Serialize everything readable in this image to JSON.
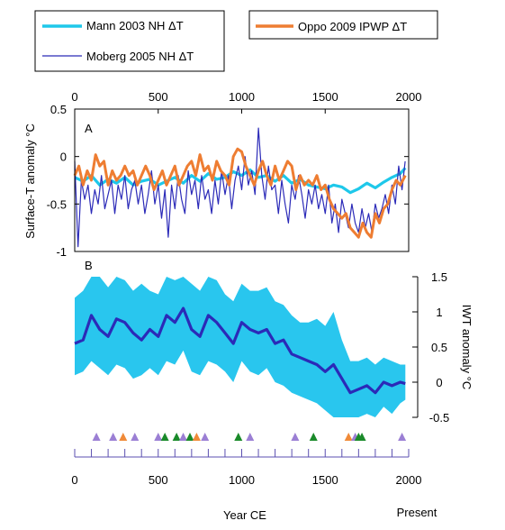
{
  "chart_data": [
    {
      "panel": "A",
      "type": "line",
      "ylabel": "Surface-T anomaly °C",
      "xlim": [
        0,
        2000
      ],
      "ylim": [
        -1,
        0.5
      ],
      "x_ticks": [
        "0",
        "500",
        "1000",
        "1500",
        "2000"
      ],
      "y_ticks": [
        "0.5",
        "0",
        "-0.5",
        "-1"
      ],
      "y_tick_values": [
        0.5,
        0,
        -0.5,
        -1
      ],
      "x_tick_values": [
        0,
        500,
        1000,
        1500,
        2000
      ],
      "series": [
        {
          "name": "Mann 2003 NH ΔT",
          "color": "#1ec8ea",
          "x": [
            0,
            50,
            100,
            150,
            200,
            250,
            300,
            350,
            400,
            450,
            500,
            550,
            600,
            650,
            700,
            750,
            800,
            850,
            900,
            950,
            1000,
            1050,
            1100,
            1150,
            1200,
            1250,
            1300,
            1350,
            1400,
            1450,
            1500,
            1550,
            1600,
            1650,
            1700,
            1750,
            1800,
            1850,
            1900,
            1950,
            1980
          ],
          "y": [
            -0.22,
            -0.26,
            -0.2,
            -0.3,
            -0.24,
            -0.28,
            -0.22,
            -0.3,
            -0.26,
            -0.24,
            -0.3,
            -0.26,
            -0.22,
            -0.28,
            -0.2,
            -0.26,
            -0.18,
            -0.24,
            -0.22,
            -0.16,
            -0.2,
            -0.14,
            -0.22,
            -0.2,
            -0.26,
            -0.2,
            -0.28,
            -0.24,
            -0.3,
            -0.32,
            -0.34,
            -0.3,
            -0.32,
            -0.38,
            -0.34,
            -0.28,
            -0.33,
            -0.27,
            -0.22,
            -0.18,
            -0.12
          ]
        },
        {
          "name": "Moberg 2005 NH ΔT",
          "color": "#2b2ab8",
          "x": [
            0,
            20,
            40,
            60,
            80,
            100,
            120,
            140,
            160,
            180,
            200,
            220,
            240,
            260,
            280,
            300,
            320,
            340,
            360,
            380,
            400,
            420,
            440,
            460,
            480,
            500,
            520,
            540,
            560,
            580,
            600,
            620,
            640,
            660,
            680,
            700,
            720,
            740,
            760,
            780,
            800,
            820,
            840,
            860,
            880,
            900,
            920,
            940,
            960,
            980,
            1000,
            1020,
            1040,
            1060,
            1080,
            1100,
            1120,
            1140,
            1160,
            1180,
            1200,
            1220,
            1240,
            1260,
            1280,
            1300,
            1320,
            1340,
            1360,
            1380,
            1400,
            1420,
            1440,
            1460,
            1480,
            1500,
            1520,
            1540,
            1560,
            1580,
            1600,
            1620,
            1640,
            1660,
            1680,
            1700,
            1720,
            1740,
            1760,
            1780,
            1800,
            1820,
            1840,
            1860,
            1880,
            1900,
            1920,
            1940,
            1960,
            1979
          ],
          "y": [
            -0.05,
            -0.95,
            -0.25,
            -0.45,
            -0.3,
            -0.6,
            -0.35,
            -0.5,
            -0.2,
            -0.55,
            -0.4,
            -0.25,
            -0.6,
            -0.3,
            -0.45,
            -0.2,
            -0.55,
            -0.35,
            -0.25,
            -0.5,
            -0.3,
            -0.6,
            -0.4,
            -0.15,
            -0.5,
            -0.3,
            -0.65,
            -0.35,
            -0.85,
            -0.3,
            -0.55,
            -0.2,
            -0.45,
            -0.6,
            -0.15,
            -0.4,
            -0.25,
            -0.55,
            -0.2,
            -0.45,
            -0.35,
            -0.6,
            -0.25,
            -0.5,
            -0.15,
            -0.4,
            -0.2,
            -0.55,
            -0.25,
            -0.1,
            -0.35,
            0.0,
            -0.3,
            -0.15,
            -0.4,
            0.3,
            -0.2,
            -0.45,
            -0.1,
            -0.35,
            -0.3,
            -0.6,
            -0.25,
            -0.5,
            -0.7,
            -0.3,
            -0.45,
            -0.2,
            -0.4,
            -0.65,
            -0.35,
            -0.5,
            -0.3,
            -0.55,
            -0.4,
            -0.6,
            -0.3,
            -0.7,
            -0.5,
            -0.8,
            -0.45,
            -0.6,
            -0.75,
            -0.5,
            -0.7,
            -0.8,
            -0.55,
            -0.75,
            -0.6,
            -0.8,
            -0.5,
            -0.65,
            -0.55,
            -0.4,
            -0.6,
            -0.3,
            -0.5,
            -0.1,
            -0.35,
            -0.05
          ]
        },
        {
          "name": "Oppo 2009 IPWP ΔT",
          "color": "#ee7d32",
          "x": [
            0,
            25,
            50,
            75,
            100,
            125,
            150,
            175,
            200,
            225,
            250,
            275,
            300,
            325,
            350,
            375,
            400,
            425,
            450,
            475,
            500,
            525,
            550,
            575,
            600,
            625,
            650,
            675,
            700,
            725,
            750,
            775,
            800,
            825,
            850,
            875,
            900,
            925,
            950,
            975,
            1000,
            1025,
            1050,
            1075,
            1100,
            1125,
            1150,
            1175,
            1200,
            1225,
            1250,
            1275,
            1300,
            1325,
            1350,
            1375,
            1400,
            1425,
            1450,
            1475,
            1500,
            1525,
            1550,
            1575,
            1600,
            1625,
            1650,
            1675,
            1700,
            1725,
            1750,
            1775,
            1800,
            1825,
            1850,
            1875,
            1900,
            1925,
            1950,
            1980
          ],
          "y": [
            -0.2,
            -0.1,
            -0.3,
            -0.15,
            -0.25,
            0.02,
            -0.1,
            -0.05,
            -0.3,
            -0.15,
            -0.25,
            -0.2,
            -0.1,
            -0.2,
            -0.15,
            -0.3,
            -0.2,
            -0.1,
            -0.2,
            -0.35,
            -0.25,
            -0.15,
            -0.3,
            -0.2,
            -0.1,
            -0.3,
            -0.2,
            -0.1,
            -0.05,
            -0.2,
            0.02,
            -0.15,
            -0.1,
            -0.25,
            -0.05,
            -0.15,
            -0.2,
            -0.3,
            0.0,
            0.08,
            0.05,
            -0.1,
            -0.2,
            -0.3,
            -0.15,
            -0.05,
            -0.2,
            -0.3,
            -0.1,
            -0.25,
            -0.15,
            -0.05,
            -0.1,
            -0.35,
            -0.2,
            -0.3,
            -0.25,
            -0.3,
            -0.2,
            -0.35,
            -0.3,
            -0.45,
            -0.55,
            -0.6,
            -0.65,
            -0.6,
            -0.75,
            -0.8,
            -0.85,
            -0.7,
            -0.8,
            -0.85,
            -0.6,
            -0.7,
            -0.55,
            -0.5,
            -0.35,
            -0.25,
            -0.3,
            -0.2
          ]
        }
      ]
    },
    {
      "panel": "B",
      "type": "area",
      "ylabel": "IWT anomaly °C",
      "xlabel": "Year CE",
      "x_end_label": "Present",
      "xlim": [
        0,
        2000
      ],
      "ylim": [
        -0.5,
        1.5
      ],
      "x_ticks": [
        "0",
        "500",
        "1000",
        "1500",
        "2000"
      ],
      "x_tick_values": [
        0,
        500,
        1000,
        1500,
        2000
      ],
      "y_ticks": [
        "1.5",
        "1",
        "0.5",
        "0",
        "-0.5"
      ],
      "y_tick_values": [
        1.5,
        1,
        0.5,
        0,
        -0.5
      ],
      "mean_color": "#2b2ab8",
      "band_color": "#29c6ee",
      "x": [
        0,
        50,
        100,
        150,
        200,
        250,
        300,
        350,
        400,
        450,
        500,
        550,
        600,
        650,
        700,
        750,
        800,
        850,
        900,
        950,
        1000,
        1050,
        1100,
        1150,
        1200,
        1250,
        1300,
        1350,
        1400,
        1450,
        1500,
        1550,
        1600,
        1650,
        1700,
        1750,
        1800,
        1850,
        1900,
        1950,
        1980
      ],
      "mean": [
        0.55,
        0.6,
        0.95,
        0.75,
        0.65,
        0.9,
        0.85,
        0.7,
        0.6,
        0.75,
        0.65,
        0.95,
        0.85,
        1.05,
        0.75,
        0.65,
        0.95,
        0.85,
        0.7,
        0.55,
        0.85,
        0.75,
        0.7,
        0.75,
        0.55,
        0.6,
        0.4,
        0.35,
        0.3,
        0.25,
        0.15,
        0.25,
        0.05,
        -0.15,
        -0.1,
        -0.05,
        -0.15,
        0.0,
        -0.05,
        0.0,
        -0.02
      ],
      "upper": [
        1.2,
        1.3,
        1.5,
        1.5,
        1.35,
        1.5,
        1.45,
        1.3,
        1.4,
        1.3,
        1.25,
        1.5,
        1.45,
        1.5,
        1.4,
        1.3,
        1.5,
        1.45,
        1.25,
        1.15,
        1.4,
        1.3,
        1.3,
        1.35,
        1.15,
        1.1,
        0.95,
        0.85,
        0.85,
        0.9,
        0.8,
        1.0,
        0.6,
        0.3,
        0.3,
        0.35,
        0.25,
        0.35,
        0.3,
        0.25,
        0.25
      ],
      "lower": [
        0.1,
        0.15,
        0.3,
        0.2,
        0.1,
        0.25,
        0.2,
        0.05,
        0.1,
        0.2,
        0.1,
        0.3,
        0.25,
        0.45,
        0.15,
        0.1,
        0.3,
        0.25,
        0.15,
        0.0,
        0.3,
        0.15,
        0.1,
        0.2,
        0.0,
        -0.05,
        -0.15,
        -0.2,
        -0.25,
        -0.3,
        -0.4,
        -0.5,
        -0.5,
        -0.5,
        -0.5,
        -0.45,
        -0.5,
        -0.35,
        -0.45,
        -0.3,
        -0.25
      ]
    }
  ],
  "legend": {
    "mann_label": "Mann 2003 NH ΔT",
    "moberg_label": "Moberg 2005 NH ΔT",
    "oppo_label": "Oppo 2009 IPWP ΔT"
  },
  "panel_labels": {
    "a": "A",
    "b": "B"
  },
  "markers": {
    "colors": {
      "purple": "#9b7fd4",
      "orange": "#f08a38",
      "green": "#1a8a2a"
    },
    "items": [
      {
        "year": 130,
        "color": "purple"
      },
      {
        "year": 230,
        "color": "purple"
      },
      {
        "year": 290,
        "color": "orange"
      },
      {
        "year": 360,
        "color": "purple"
      },
      {
        "year": 500,
        "color": "purple"
      },
      {
        "year": 540,
        "color": "green"
      },
      {
        "year": 610,
        "color": "green"
      },
      {
        "year": 650,
        "color": "purple"
      },
      {
        "year": 690,
        "color": "green"
      },
      {
        "year": 730,
        "color": "orange"
      },
      {
        "year": 780,
        "color": "purple"
      },
      {
        "year": 980,
        "color": "green"
      },
      {
        "year": 1050,
        "color": "purple"
      },
      {
        "year": 1320,
        "color": "purple"
      },
      {
        "year": 1430,
        "color": "green"
      },
      {
        "year": 1640,
        "color": "orange"
      },
      {
        "year": 1680,
        "color": "purple"
      },
      {
        "year": 1700,
        "color": "green"
      },
      {
        "year": 1720,
        "color": "green"
      },
      {
        "year": 1960,
        "color": "purple"
      }
    ]
  }
}
